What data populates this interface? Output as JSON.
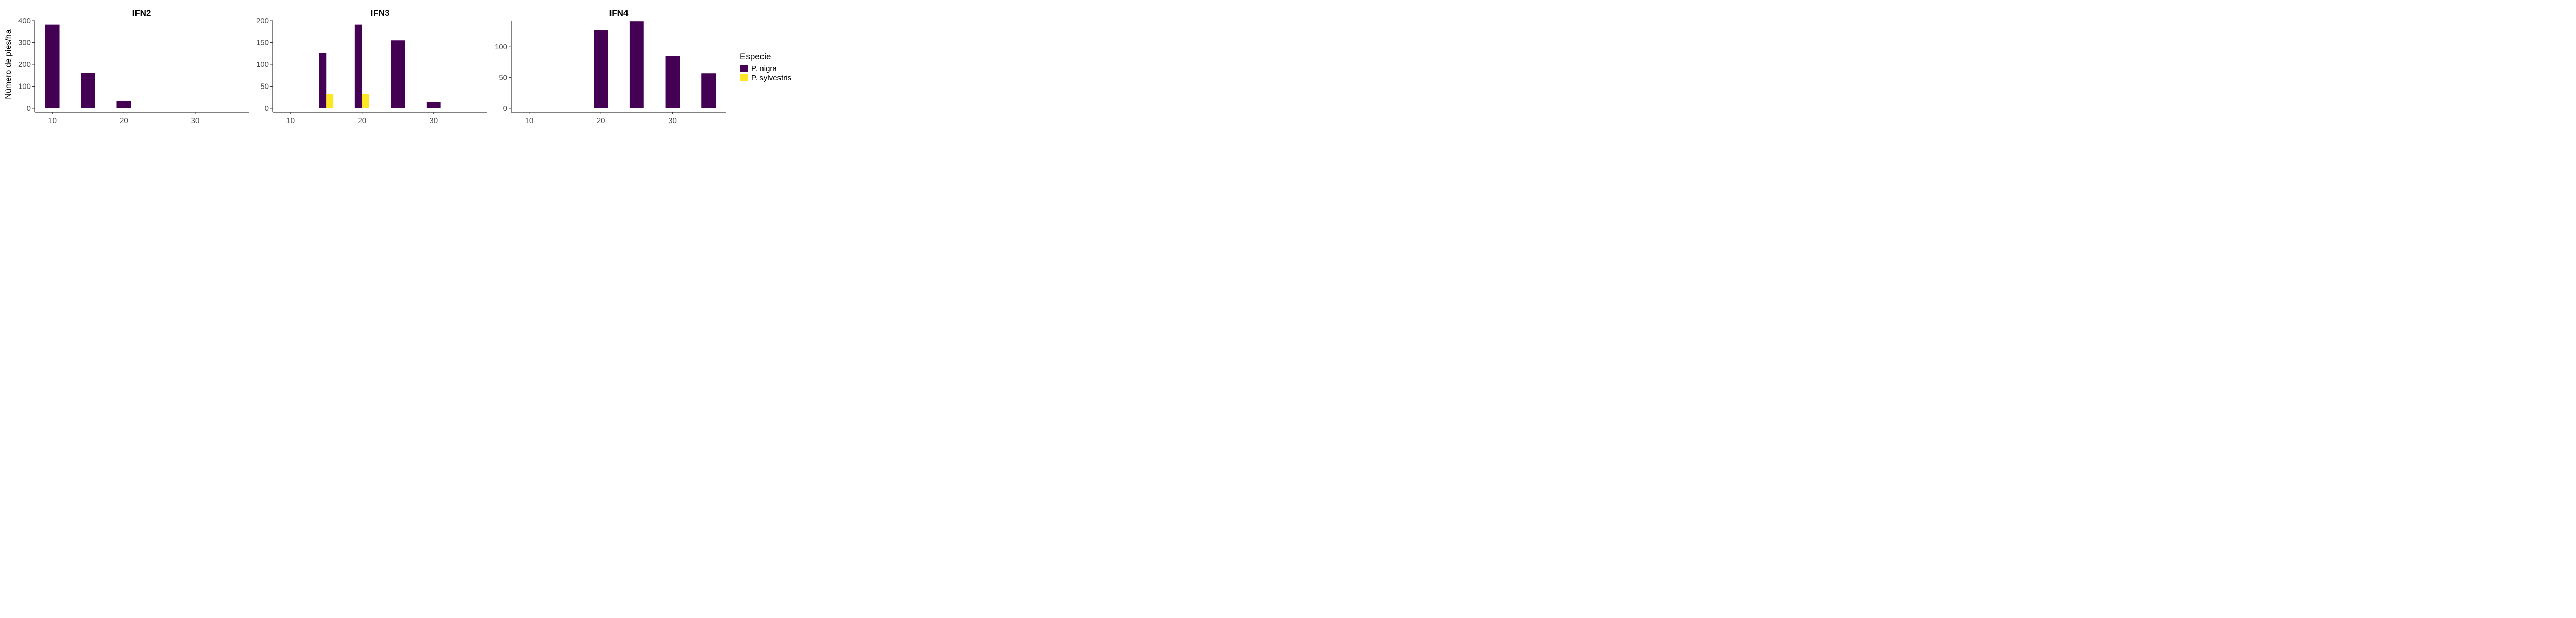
{
  "legend": {
    "title": "Especie",
    "items": [
      {
        "label": "P. nigra",
        "color": "#440154"
      },
      {
        "label": "P. sylvestris",
        "color": "#FDE725"
      }
    ]
  },
  "ylabel": "Número de pies/ha",
  "chart_data": [
    {
      "type": "bar",
      "title": "IFN2",
      "xlabel": "",
      "ylabel": "Número de pies/ha",
      "xlim": [
        7.5,
        37.5
      ],
      "ylim": [
        0,
        400
      ],
      "xticks": [
        10,
        20,
        30
      ],
      "yticks": [
        0,
        100,
        200,
        300,
        400
      ],
      "x": [
        10,
        15,
        20,
        25,
        30,
        35
      ],
      "series": [
        {
          "name": "P. nigra",
          "values": [
            382,
            160,
            33,
            0,
            0,
            0
          ]
        },
        {
          "name": "P. sylvestris",
          "values": [
            0,
            0,
            0,
            0,
            0,
            0
          ]
        }
      ]
    },
    {
      "type": "bar",
      "title": "IFN3",
      "xlabel": "",
      "ylabel": "",
      "xlim": [
        7.5,
        37.5
      ],
      "ylim": [
        0,
        200
      ],
      "xticks": [
        10,
        20,
        30
      ],
      "yticks": [
        0,
        50,
        100,
        150,
        200
      ],
      "x": [
        10,
        15,
        20,
        25,
        30,
        35
      ],
      "series": [
        {
          "name": "P. nigra",
          "values": [
            0,
            127,
            191,
            155,
            14,
            0
          ]
        },
        {
          "name": "P. sylvestris",
          "values": [
            0,
            32,
            32,
            0,
            0,
            0
          ]
        }
      ]
    },
    {
      "type": "bar",
      "title": "IFN4",
      "xlabel": "",
      "ylabel": "",
      "xlim": [
        7.5,
        37.5
      ],
      "ylim": [
        0,
        143
      ],
      "xticks": [
        10,
        20,
        30
      ],
      "yticks": [
        0,
        50,
        100
      ],
      "x": [
        10,
        15,
        20,
        25,
        30,
        35
      ],
      "series": [
        {
          "name": "P. nigra",
          "values": [
            0,
            0,
            127,
            142,
            85,
            57
          ]
        },
        {
          "name": "P. sylvestris",
          "values": [
            0,
            0,
            0,
            0,
            0,
            0
          ]
        }
      ]
    }
  ]
}
